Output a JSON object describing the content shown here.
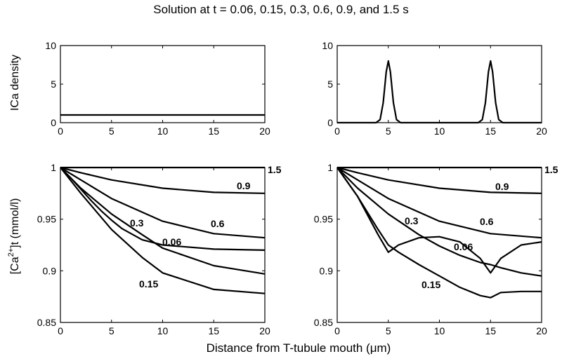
{
  "figure": {
    "title": "Solution at t = 0.06, 0.15, 0.3, 0.6, 0.9, and 1.5 s",
    "xlabel": "Distance from T-tubule mouth  (μm)",
    "ylabel_top": "ICa density",
    "ylabel_bottom_main": "[Ca",
    "ylabel_bottom_sup": "2+",
    "ylabel_bottom_rest": "]t   (mmol/l)"
  },
  "chart_data": [
    {
      "type": "line",
      "panel": "top-left",
      "xlim": [
        0,
        20
      ],
      "ylim": [
        0,
        10
      ],
      "xticks": [
        "0",
        "5",
        "10",
        "15",
        "20"
      ],
      "yticks": [
        "0",
        "5",
        "10"
      ],
      "grid": false,
      "series": [
        {
          "x": [
            0,
            20
          ],
          "y": [
            1,
            1
          ]
        }
      ]
    },
    {
      "type": "line",
      "panel": "top-right",
      "xlim": [
        0,
        20
      ],
      "ylim": [
        0,
        10
      ],
      "xticks": [
        "0",
        "5",
        "10",
        "15",
        "20"
      ],
      "yticks": [
        "0",
        "5",
        "10"
      ],
      "grid": false,
      "series": [
        {
          "x": [
            0,
            3.8,
            4.2,
            4.5,
            4.8,
            5.0,
            5.2,
            5.5,
            5.8,
            6.2,
            13.8,
            14.2,
            14.5,
            14.8,
            15.0,
            15.2,
            15.5,
            15.8,
            16.2,
            20
          ],
          "y": [
            0,
            0,
            0.4,
            2.6,
            6.6,
            8.0,
            6.6,
            2.6,
            0.4,
            0,
            0,
            0.4,
            2.6,
            6.6,
            8.0,
            6.6,
            2.6,
            0.4,
            0,
            0
          ]
        }
      ]
    },
    {
      "type": "line",
      "panel": "bottom-left",
      "xlim": [
        0,
        20
      ],
      "ylim": [
        0.85,
        1.0
      ],
      "xticks": [
        "0",
        "5",
        "10",
        "15",
        "20"
      ],
      "yticks": [
        "0.85",
        "0.9",
        "0.95",
        "1"
      ],
      "grid": false,
      "series": [
        {
          "name": "1.5",
          "x": [
            0,
            20
          ],
          "y": [
            1.0,
            1.0
          ]
        },
        {
          "name": "0.9",
          "x": [
            0,
            2,
            5,
            10,
            15,
            20
          ],
          "y": [
            1.0,
            0.995,
            0.988,
            0.98,
            0.976,
            0.975
          ]
        },
        {
          "name": "0.6",
          "x": [
            0,
            2,
            5,
            10,
            15,
            20
          ],
          "y": [
            1.0,
            0.988,
            0.97,
            0.948,
            0.936,
            0.932
          ]
        },
        {
          "name": "0.3",
          "x": [
            0,
            2,
            5,
            8,
            10,
            15,
            20
          ],
          "y": [
            1.0,
            0.98,
            0.955,
            0.935,
            0.922,
            0.905,
            0.897
          ]
        },
        {
          "name": "0.06",
          "x": [
            0,
            1,
            2,
            3,
            4,
            5,
            6,
            8,
            10,
            15,
            20
          ],
          "y": [
            1.0,
            0.99,
            0.979,
            0.968,
            0.958,
            0.949,
            0.941,
            0.93,
            0.925,
            0.921,
            0.92
          ]
        },
        {
          "name": "0.15",
          "x": [
            0,
            2,
            5,
            8,
            10,
            15,
            20
          ],
          "y": [
            1.0,
            0.975,
            0.94,
            0.913,
            0.898,
            0.882,
            0.878
          ]
        }
      ],
      "annotations": [
        "1.5",
        "0.9",
        "0.6",
        "0.3",
        "0.06",
        "0.15"
      ]
    },
    {
      "type": "line",
      "panel": "bottom-right",
      "xlim": [
        0,
        20
      ],
      "ylim": [
        0.85,
        1.0
      ],
      "xticks": [
        "0",
        "5",
        "10",
        "15",
        "20"
      ],
      "yticks": [
        "0.85",
        "0.9",
        "0.95",
        "1"
      ],
      "grid": false,
      "series": [
        {
          "name": "1.5",
          "x": [
            0,
            20
          ],
          "y": [
            1.0,
            1.0
          ]
        },
        {
          "name": "0.9",
          "x": [
            0,
            2,
            5,
            10,
            15,
            20
          ],
          "y": [
            1.0,
            0.995,
            0.988,
            0.98,
            0.976,
            0.975
          ]
        },
        {
          "name": "0.6",
          "x": [
            0,
            2,
            5,
            10,
            15,
            20
          ],
          "y": [
            1.0,
            0.988,
            0.97,
            0.948,
            0.936,
            0.932
          ]
        },
        {
          "name": "0.3",
          "x": [
            0,
            2,
            5,
            8,
            10,
            12,
            14,
            15,
            16,
            18,
            20
          ],
          "y": [
            1.0,
            0.98,
            0.955,
            0.935,
            0.924,
            0.915,
            0.908,
            0.906,
            0.903,
            0.898,
            0.895
          ]
        },
        {
          "name": "0.06",
          "x": [
            0,
            2,
            4,
            5,
            6,
            8,
            10,
            12,
            14,
            15,
            16,
            18,
            20
          ],
          "y": [
            1.0,
            0.972,
            0.935,
            0.918,
            0.925,
            0.932,
            0.933,
            0.928,
            0.912,
            0.898,
            0.912,
            0.925,
            0.928
          ]
        },
        {
          "name": "0.15",
          "x": [
            0,
            2,
            4,
            5,
            6,
            8,
            10,
            12,
            14,
            15,
            16,
            18,
            20
          ],
          "y": [
            1.0,
            0.972,
            0.94,
            0.925,
            0.918,
            0.906,
            0.895,
            0.884,
            0.876,
            0.874,
            0.879,
            0.88,
            0.88
          ]
        }
      ],
      "annotations": [
        "1.5",
        "0.9",
        "0.6",
        "0.3",
        "0.06",
        "0.15"
      ]
    }
  ]
}
